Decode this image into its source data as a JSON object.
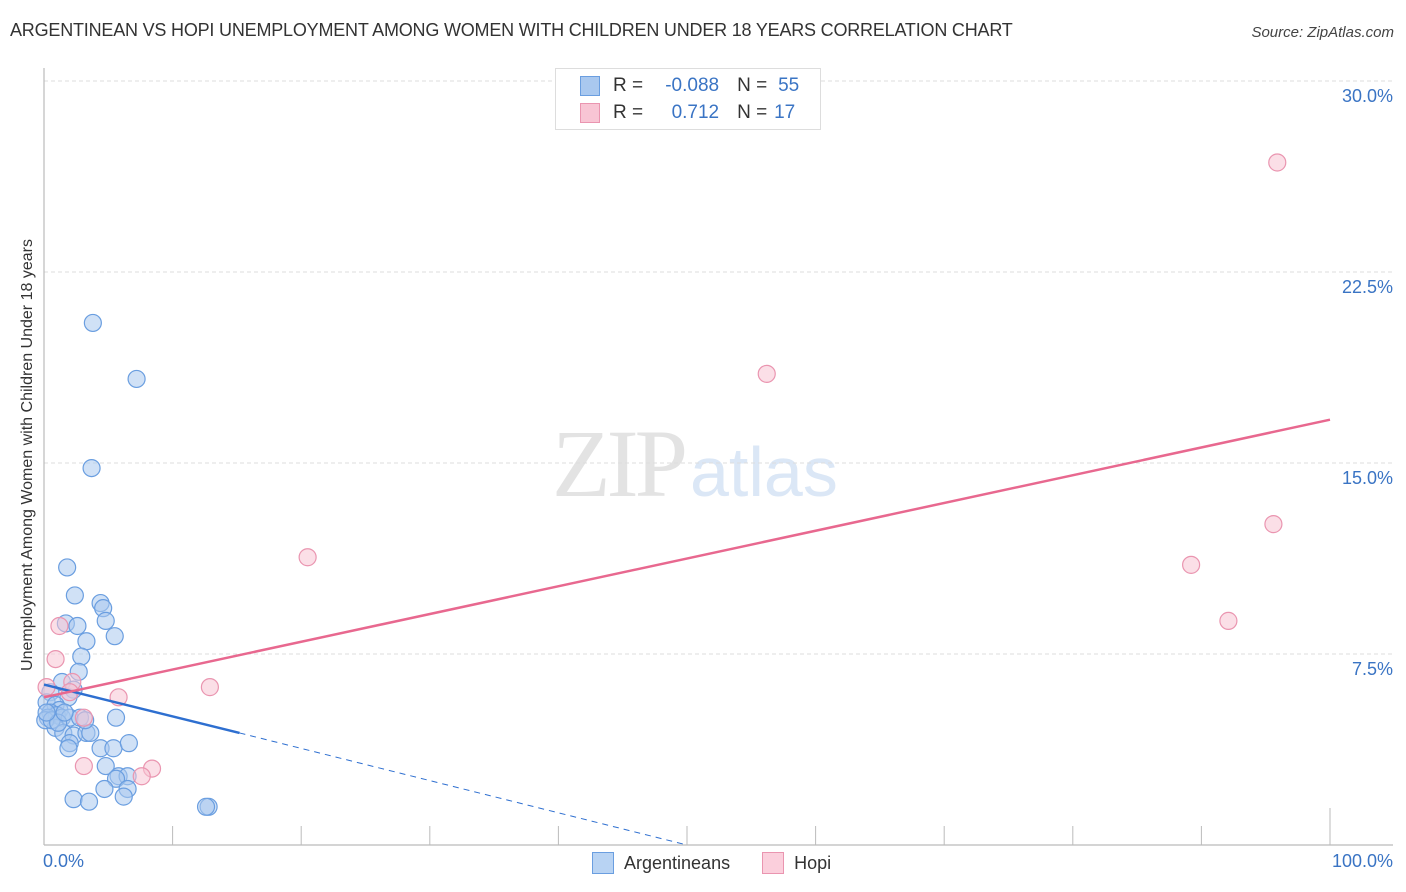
{
  "header": {
    "title": "ARGENTINEAN VS HOPI UNEMPLOYMENT AMONG WOMEN WITH CHILDREN UNDER 18 YEARS CORRELATION CHART",
    "source": "Source: ZipAtlas.com"
  },
  "watermark": {
    "zip": "ZIP",
    "atlas": "atlas"
  },
  "legend": {
    "rows": [
      {
        "r_label": "R =",
        "r_value": "-0.088",
        "n_label": "N =",
        "n_value": "55",
        "color": "#a9c8ef",
        "border": "#6a9ee0"
      },
      {
        "r_label": "R =",
        "r_value": "0.712",
        "n_label": "N =",
        "n_value": "17",
        "color": "#f8c5d4",
        "border": "#ea95b0"
      }
    ]
  },
  "bottom_legend": [
    {
      "label": "Argentineans",
      "color": "#b8d3f3",
      "border": "#6a9ee0"
    },
    {
      "label": "Hopi",
      "color": "#fbcfdc",
      "border": "#ea95b0"
    }
  ],
  "axes": {
    "y_label": "Unemployment Among Women with Children Under 18 years",
    "y_ticks": [
      "30.0%",
      "22.5%",
      "15.0%",
      "7.5%"
    ],
    "x_ticks": [
      "0.0%",
      "100.0%"
    ]
  },
  "chart_data": {
    "type": "scatter",
    "title": "ARGENTINEAN VS HOPI UNEMPLOYMENT AMONG WOMEN WITH CHILDREN UNDER 18 YEARS CORRELATION CHART",
    "xlabel": "",
    "ylabel": "Unemployment Among Women with Children Under 18 years",
    "xlim": [
      0,
      100
    ],
    "ylim": [
      0,
      30
    ],
    "y_tick_values": [
      7.5,
      15.0,
      22.5,
      30.0
    ],
    "x_tick_labels": [
      "0.0%",
      "100.0%"
    ],
    "grid": "horizontal dashed",
    "legend_position": "top-center and bottom-center",
    "series": [
      {
        "name": "Argentineans",
        "color": "#6a9ee0",
        "fill": "#a9c8ef",
        "R": -0.088,
        "N": 55,
        "trend": {
          "x0": 0,
          "y0": 6.3,
          "x_solid_end": 15.2,
          "y_solid_end": 4.4,
          "x1": 50,
          "y1": 0,
          "color": "#2e6fd0"
        },
        "points": [
          [
            3.8,
            20.5
          ],
          [
            7.2,
            18.3
          ],
          [
            3.7,
            14.8
          ],
          [
            1.8,
            10.9
          ],
          [
            2.4,
            9.8
          ],
          [
            4.4,
            9.5
          ],
          [
            4.6,
            9.3
          ],
          [
            1.7,
            8.7
          ],
          [
            2.6,
            8.6
          ],
          [
            4.8,
            8.8
          ],
          [
            3.3,
            8.0
          ],
          [
            5.5,
            8.2
          ],
          [
            2.9,
            7.4
          ],
          [
            2.7,
            6.8
          ],
          [
            1.4,
            6.4
          ],
          [
            2.3,
            6.1
          ],
          [
            1.9,
            5.8
          ],
          [
            0.5,
            6.0
          ],
          [
            0.2,
            5.6
          ],
          [
            0.9,
            5.5
          ],
          [
            1.2,
            5.3
          ],
          [
            0.5,
            5.2
          ],
          [
            1.0,
            5.1
          ],
          [
            0.3,
            5.0
          ],
          [
            1.4,
            5.0
          ],
          [
            2.0,
            5.0
          ],
          [
            2.8,
            5.0
          ],
          [
            5.6,
            5.0
          ],
          [
            0.9,
            4.6
          ],
          [
            1.5,
            4.4
          ],
          [
            2.3,
            4.3
          ],
          [
            3.3,
            4.4
          ],
          [
            3.6,
            4.4
          ],
          [
            2.0,
            4.0
          ],
          [
            1.9,
            3.8
          ],
          [
            4.4,
            3.8
          ],
          [
            5.4,
            3.8
          ],
          [
            6.6,
            4.0
          ],
          [
            4.8,
            3.1
          ],
          [
            5.8,
            2.7
          ],
          [
            6.5,
            2.7
          ],
          [
            5.6,
            2.6
          ],
          [
            4.7,
            2.2
          ],
          [
            6.5,
            2.2
          ],
          [
            2.3,
            1.8
          ],
          [
            3.5,
            1.7
          ],
          [
            6.2,
            1.9
          ],
          [
            12.8,
            1.5
          ],
          [
            12.6,
            1.5
          ],
          [
            0.1,
            4.9
          ],
          [
            0.6,
            4.9
          ],
          [
            1.1,
            4.8
          ],
          [
            0.2,
            5.2
          ],
          [
            1.6,
            5.2
          ],
          [
            3.2,
            4.9
          ]
        ]
      },
      {
        "name": "Hopi",
        "color": "#ea95b0",
        "fill": "#f8c5d4",
        "R": 0.712,
        "N": 17,
        "trend": {
          "x0": 0,
          "y0": 5.8,
          "x1": 100,
          "y1": 16.7,
          "color": "#e8688f"
        },
        "points": [
          [
            95.9,
            26.8
          ],
          [
            56.2,
            18.5
          ],
          [
            20.5,
            11.3
          ],
          [
            95.6,
            12.6
          ],
          [
            89.2,
            11.0
          ],
          [
            92.1,
            8.8
          ],
          [
            12.9,
            6.2
          ],
          [
            1.2,
            8.6
          ],
          [
            0.9,
            7.3
          ],
          [
            0.2,
            6.2
          ],
          [
            2.2,
            6.4
          ],
          [
            5.8,
            5.8
          ],
          [
            3.1,
            5.0
          ],
          [
            3.1,
            3.1
          ],
          [
            8.4,
            3.0
          ],
          [
            7.6,
            2.7
          ],
          [
            2.0,
            6.0
          ]
        ]
      }
    ]
  }
}
